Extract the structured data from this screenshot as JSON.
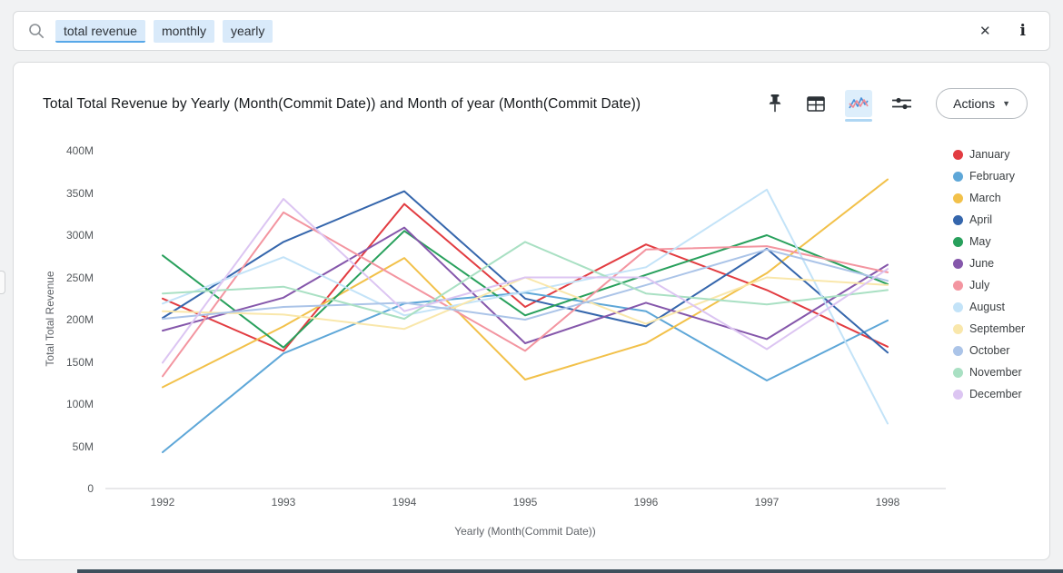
{
  "search_bar": {
    "tokens": [
      "total revenue",
      "monthly",
      "yearly"
    ],
    "clear_icon": "✕",
    "info_icon": "i"
  },
  "toolbar": {
    "icons": [
      "pin-icon",
      "table-icon",
      "line-chart-icon",
      "settings-sliders-icon"
    ],
    "selected_icon": "line-chart-icon",
    "actions_label": "Actions",
    "caret_icon": "▼"
  },
  "chart_data": {
    "type": "line",
    "title": "Total Total Revenue by Yearly (Month(Commit Date)) and Month of year (Month(Commit Date))",
    "xlabel": "Yearly (Month(Commit Date))",
    "ylabel": "Total Total Revenue",
    "x": [
      1992,
      1993,
      1994,
      1995,
      1996,
      1997,
      1998
    ],
    "y_tick_labels": [
      "400M",
      "350M",
      "300M",
      "250M",
      "200M",
      "150M",
      "100M",
      "50M",
      "0"
    ],
    "ylim": [
      0,
      400000000
    ],
    "value_unit": "M",
    "grid": false,
    "legend_position": "right",
    "series": [
      {
        "name": "January",
        "color": "#e23c41",
        "values": [
          225,
          163,
          337,
          215,
          289,
          235,
          168
        ]
      },
      {
        "name": "February",
        "color": "#5ea7d8",
        "values": [
          43,
          160,
          219,
          232,
          210,
          128,
          199
        ]
      },
      {
        "name": "March",
        "color": "#f2c14a",
        "values": [
          120,
          192,
          273,
          129,
          172,
          255,
          366
        ]
      },
      {
        "name": "April",
        "color": "#3566ac",
        "values": [
          202,
          292,
          352,
          225,
          192,
          284,
          161
        ]
      },
      {
        "name": "May",
        "color": "#28a05c",
        "values": [
          276,
          167,
          305,
          205,
          253,
          300,
          242
        ]
      },
      {
        "name": "June",
        "color": "#8557ab",
        "values": [
          187,
          226,
          309,
          172,
          220,
          177,
          265
        ]
      },
      {
        "name": "July",
        "color": "#f395a0",
        "values": [
          133,
          327,
          245,
          163,
          283,
          287,
          256
        ]
      },
      {
        "name": "August",
        "color": "#c3e3f8",
        "values": [
          219,
          274,
          205,
          233,
          262,
          354,
          77
        ]
      },
      {
        "name": "September",
        "color": "#f9e7ab",
        "values": [
          210,
          206,
          189,
          250,
          195,
          250,
          241
        ]
      },
      {
        "name": "October",
        "color": "#abc4e8",
        "values": [
          201,
          215,
          220,
          200,
          241,
          283,
          246
        ]
      },
      {
        "name": "November",
        "color": "#a9e0c3",
        "values": [
          231,
          239,
          201,
          292,
          231,
          218,
          235
        ]
      },
      {
        "name": "December",
        "color": "#dcc5f2",
        "values": [
          149,
          343,
          210,
          250,
          250,
          165,
          260
        ]
      }
    ]
  }
}
